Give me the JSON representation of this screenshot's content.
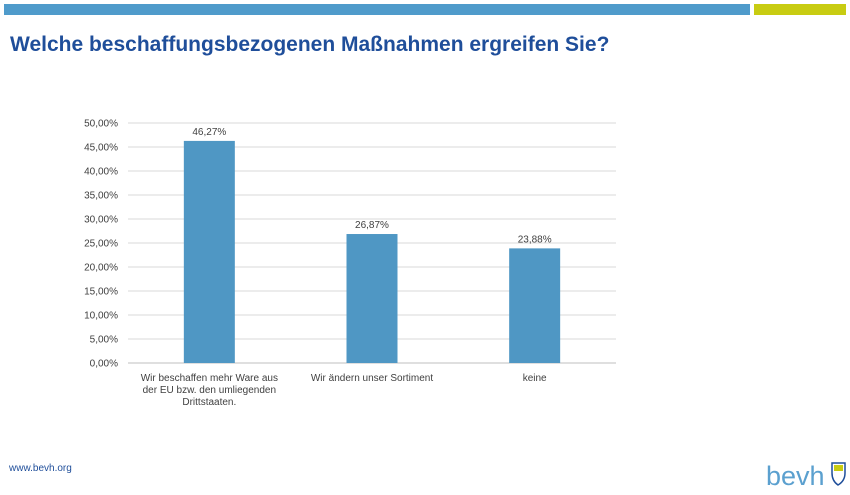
{
  "page": {
    "title": "Welche beschaffungsbezogenen Maßnahmen ergreifen Sie?",
    "footer_url": "www.bevh.org",
    "logo_text": "bevh",
    "colors": {
      "stripe_blue": "#4f9bcb",
      "stripe_yellow": "#c8cc12",
      "title": "#1f4e9a",
      "bar": "#4f97c4"
    }
  },
  "chart_data": {
    "type": "bar",
    "categories": [
      [
        "Wir beschaffen mehr Ware aus",
        "der EU bzw. den umliegenden",
        "Drittstaaten."
      ],
      [
        "Wir ändern unser Sortiment"
      ],
      [
        "keine"
      ]
    ],
    "values": [
      46.27,
      26.87,
      23.88
    ],
    "data_labels": [
      "46,27%",
      "26,87%",
      "23,88%"
    ],
    "ylim": [
      0,
      50
    ],
    "yticks": [
      0,
      5,
      10,
      15,
      20,
      25,
      30,
      35,
      40,
      45,
      50
    ],
    "ytick_labels": [
      "0,00%",
      "5,00%",
      "10,00%",
      "15,00%",
      "20,00%",
      "25,00%",
      "30,00%",
      "35,00%",
      "40,00%",
      "45,00%",
      "50,00%"
    ],
    "grid": true,
    "legend": "none",
    "title": "",
    "xlabel": "",
    "ylabel": ""
  }
}
